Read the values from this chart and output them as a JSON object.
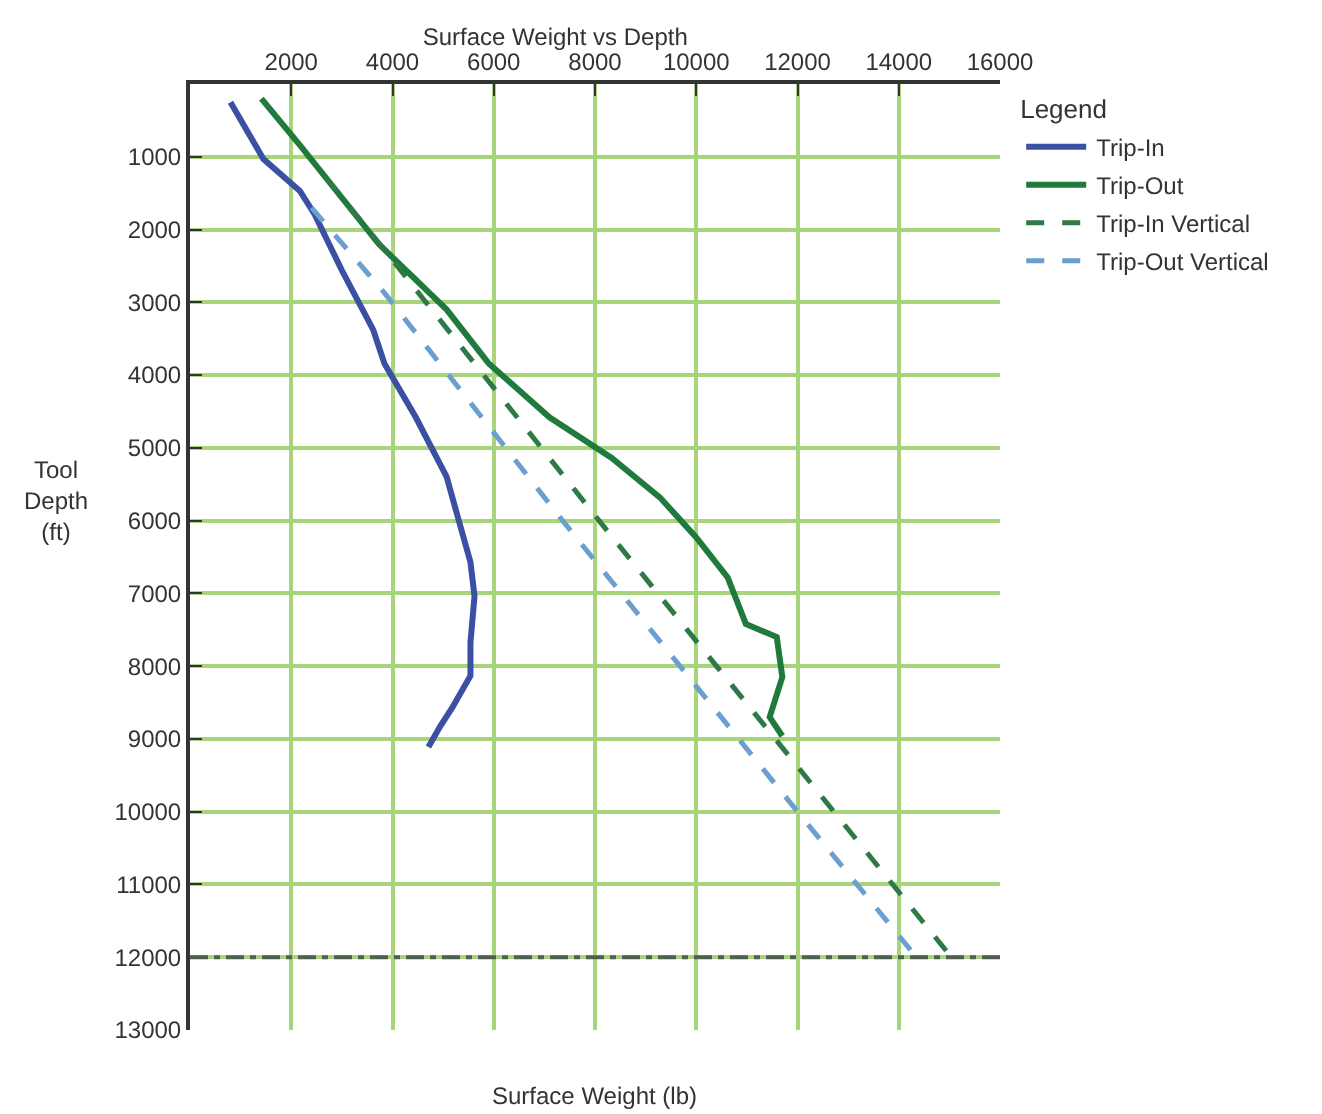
{
  "chart_data": {
    "type": "line",
    "title": "Surface Weight vs Depth",
    "xlabel": "Surface Weight (lb)",
    "ylabel": "Tool Depth (ft)",
    "legend_title": "Legend",
    "xlim": [
      0,
      16000
    ],
    "xticks": [
      2000,
      4000,
      6000,
      8000,
      10000,
      12000,
      14000,
      16000
    ],
    "ylim": [
      13000,
      0
    ],
    "yticks": [
      1000,
      2000,
      3000,
      4000,
      5000,
      6000,
      7000,
      8000,
      9000,
      10000,
      11000,
      12000,
      13000
    ],
    "grid": true,
    "legend": "right",
    "marker": "none",
    "ref_lines": [
      {
        "axis": "y",
        "value": 12000,
        "color": "#4f5f4f",
        "line_style": "dashdot"
      }
    ],
    "series": [
      {
        "name": "Trip-In",
        "color": "#3b4fa3",
        "line_style": "solid",
        "x": [
          800,
          1450,
          2170,
          2460,
          3000,
          3620,
          3840,
          4460,
          5070,
          5290,
          5540,
          5620,
          5540,
          5540,
          5180,
          4930,
          4710
        ],
        "values": [
          250,
          1030,
          1470,
          1790,
          2560,
          3380,
          3840,
          4580,
          5400,
          5950,
          6570,
          7040,
          7670,
          8130,
          8570,
          8840,
          9110
        ]
      },
      {
        "name": "Trip-Out",
        "color": "#1f7a3c",
        "line_style": "solid",
        "x": [
          1410,
          2170,
          3730,
          5070,
          5900,
          7100,
          8330,
          9280,
          10000,
          10620,
          10980,
          11590,
          11700,
          11450,
          11700
        ],
        "values": [
          200,
          840,
          2200,
          3100,
          3840,
          4580,
          5140,
          5680,
          6230,
          6780,
          7420,
          7600,
          8150,
          8700,
          8960
        ]
      },
      {
        "name": "Trip-In Vertical",
        "color": "#2e7a46",
        "line_style": "dashed",
        "x": [
          2700,
          3840,
          8080,
          15040
        ],
        "values": [
          1300,
          2280,
          6000,
          12000
        ]
      },
      {
        "name": "Trip-Out Vertical",
        "color": "#6a9fd0",
        "line_style": "dashed",
        "x": [
          2400,
          3840,
          7360,
          12000,
          14350
        ],
        "values": [
          1700,
          2870,
          6000,
          10000,
          12000
        ]
      }
    ]
  }
}
